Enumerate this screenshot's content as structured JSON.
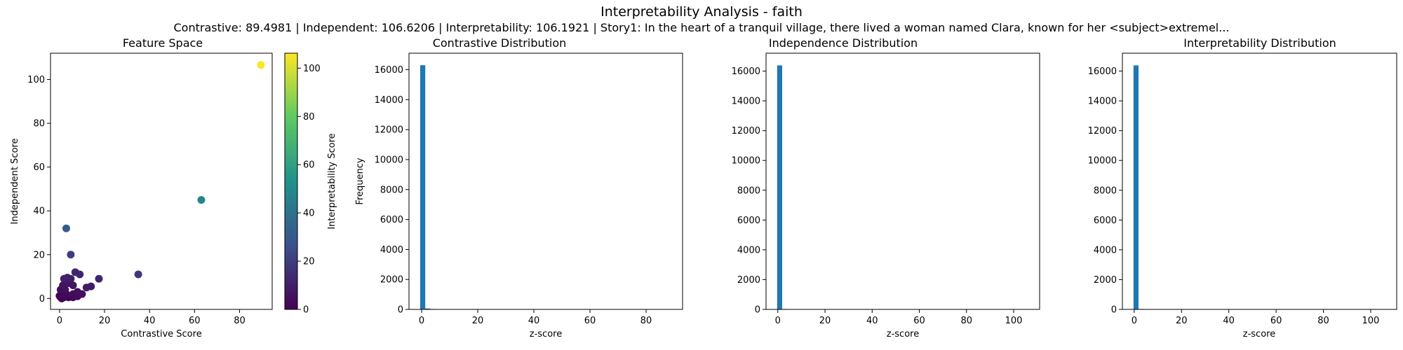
{
  "figure": {
    "title": "Interpretability Analysis - faith",
    "subtitle": "Contrastive: 89.4981 | Independent: 106.6206 | Interpretability: 106.1921 | Story1: In the heart of a tranquil village, there lived a woman named Clara, known for her <subject>extremel..."
  },
  "colors": {
    "bar": "#1f77b4",
    "axes": "#000000",
    "colormap": [
      "#440154",
      "#3b528b",
      "#21918c",
      "#5ec962",
      "#fde725"
    ]
  },
  "chart_data": [
    {
      "type": "scatter",
      "title": "Feature Space",
      "xlabel": "Contrastive Score",
      "ylabel": "Independent Score",
      "xlim": [
        -4,
        94.5
      ],
      "ylim": [
        -5,
        112
      ],
      "xticks": [
        0,
        20,
        40,
        60,
        80
      ],
      "yticks": [
        0,
        20,
        40,
        60,
        80,
        100
      ],
      "colorbar": {
        "label": "Interpretability Score",
        "range": [
          0,
          106.2
        ],
        "ticks": [
          0,
          20,
          40,
          60,
          80,
          100
        ]
      },
      "points": [
        {
          "x": 89.5,
          "y": 106.6,
          "c": 106.2
        },
        {
          "x": 63,
          "y": 45,
          "c": 48
        },
        {
          "x": 35,
          "y": 11,
          "c": 18
        },
        {
          "x": 3,
          "y": 32,
          "c": 30
        },
        {
          "x": 5,
          "y": 20,
          "c": 20
        },
        {
          "x": 7,
          "y": 12,
          "c": 12
        },
        {
          "x": 9,
          "y": 11,
          "c": 12
        },
        {
          "x": 17.5,
          "y": 9,
          "c": 12
        },
        {
          "x": 12,
          "y": 5,
          "c": 8
        },
        {
          "x": 14,
          "y": 5.5,
          "c": 9
        },
        {
          "x": 2,
          "y": 9,
          "c": 10
        },
        {
          "x": 3.5,
          "y": 9.5,
          "c": 10
        },
        {
          "x": 5,
          "y": 9,
          "c": 9
        },
        {
          "x": 6,
          "y": 6,
          "c": 7
        },
        {
          "x": 1.5,
          "y": 6,
          "c": 6
        },
        {
          "x": 4,
          "y": 7,
          "c": 7
        },
        {
          "x": 2.5,
          "y": 4,
          "c": 5
        },
        {
          "x": 0.5,
          "y": 4,
          "c": 4
        },
        {
          "x": 8,
          "y": 3,
          "c": 5
        },
        {
          "x": 10,
          "y": 2,
          "c": 5
        },
        {
          "x": 3,
          "y": 2,
          "c": 3
        },
        {
          "x": 6,
          "y": 2,
          "c": 4
        },
        {
          "x": 1,
          "y": 2,
          "c": 2
        },
        {
          "x": 0.5,
          "y": 0.5,
          "c": 1
        },
        {
          "x": 2,
          "y": 0.5,
          "c": 1
        },
        {
          "x": 4,
          "y": 0.5,
          "c": 2
        },
        {
          "x": 6,
          "y": 0.5,
          "c": 2
        },
        {
          "x": 8,
          "y": 1,
          "c": 3
        },
        {
          "x": 1,
          "y": 0,
          "c": 0
        },
        {
          "x": 3,
          "y": 1,
          "c": 1
        },
        {
          "x": 5,
          "y": 1,
          "c": 2
        },
        {
          "x": 0,
          "y": 1.2,
          "c": 1
        }
      ]
    },
    {
      "type": "bar",
      "title": "Contrastive Distribution",
      "xlabel": "z-score",
      "ylabel": "Frequency",
      "xlim": [
        -4.5,
        93
      ],
      "ylim": [
        0,
        17100
      ],
      "xticks": [
        0,
        20,
        40,
        60,
        80
      ],
      "yticks": [
        0,
        2000,
        4000,
        6000,
        8000,
        10000,
        12000,
        14000,
        16000
      ],
      "bin_width": 1.8,
      "bins": [
        -0.5,
        1.3,
        3.1,
        5.0,
        6.8
      ],
      "values": [
        16300,
        60,
        30,
        10,
        5
      ]
    },
    {
      "type": "bar",
      "title": "Independence Distribution",
      "xlabel": "z-score",
      "ylabel": "",
      "xlim": [
        -5,
        111
      ],
      "ylim": [
        0,
        17200
      ],
      "xticks": [
        0,
        20,
        40,
        60,
        80,
        100
      ],
      "yticks": [
        0,
        2000,
        4000,
        6000,
        8000,
        10000,
        12000,
        14000,
        16000
      ],
      "bin_width": 2.14,
      "bins": [
        -0.3,
        1.84,
        3.98
      ],
      "values": [
        16380,
        30,
        10
      ]
    },
    {
      "type": "bar",
      "title": "Interpretability Distribution",
      "xlabel": "z-score",
      "ylabel": "",
      "xlim": [
        -5,
        111
      ],
      "ylim": [
        0,
        17200
      ],
      "xticks": [
        0,
        20,
        40,
        60,
        80,
        100
      ],
      "yticks": [
        0,
        2000,
        4000,
        6000,
        8000,
        10000,
        12000,
        14000,
        16000
      ],
      "bin_width": 2.13,
      "bins": [
        -0.3,
        1.83,
        3.96
      ],
      "values": [
        16380,
        30,
        10
      ]
    }
  ]
}
